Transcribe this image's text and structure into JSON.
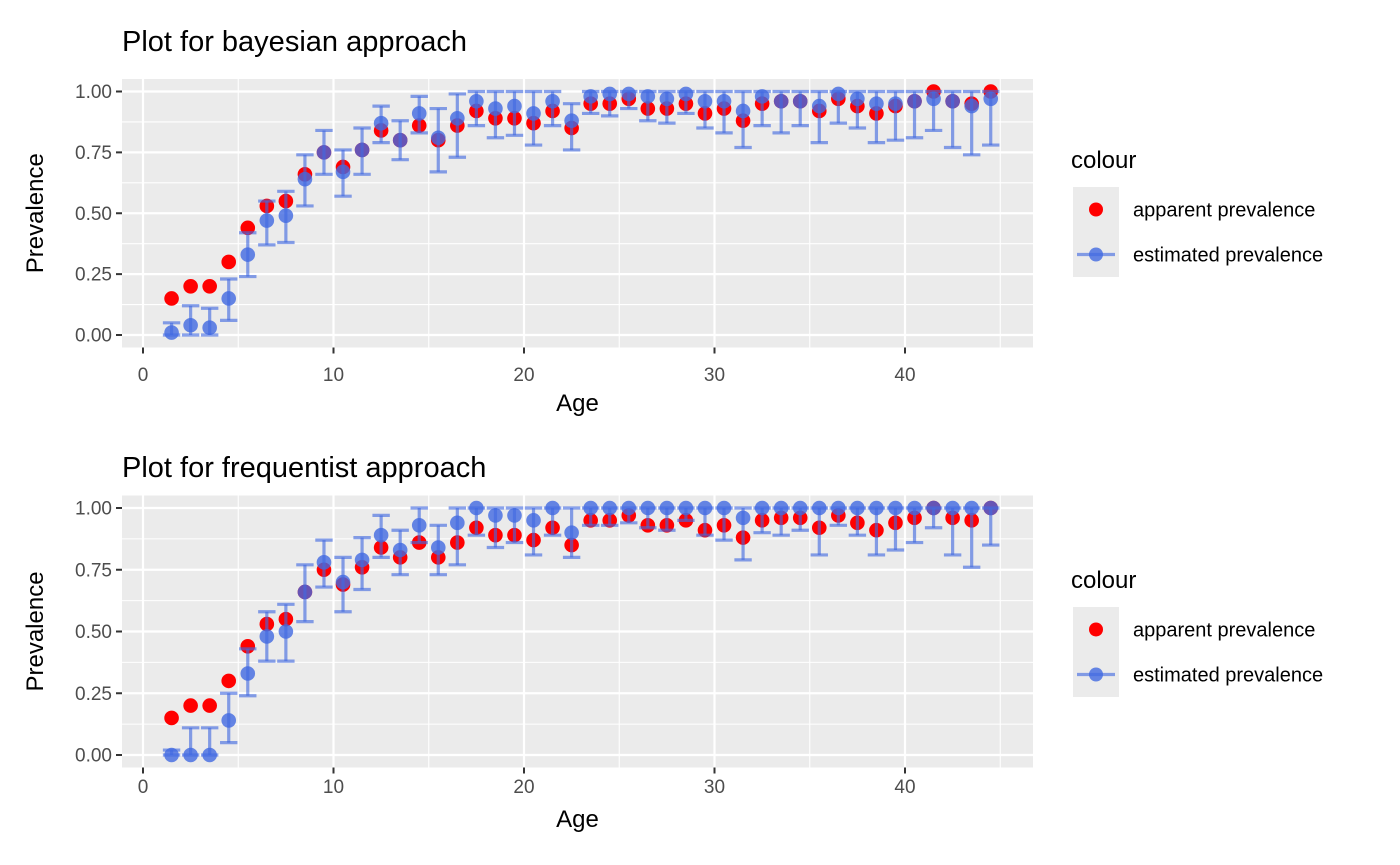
{
  "figure": {
    "background": "#FFFFFF",
    "panel_background": "#EBEBEB",
    "grid_color": "#FFFFFF",
    "title_color": "#000000",
    "tick_label_color": "#4D4D4D",
    "tick_mark_color": "#333333",
    "apparent_color": "#FF0000",
    "estimated_color": "#4169E1"
  },
  "axis": {
    "x_label": "Age",
    "y_label": "Prevalence",
    "x_ticks": [
      0,
      10,
      20,
      30,
      40
    ],
    "x_tick_labels": [
      "0",
      "10",
      "20",
      "30",
      "40"
    ],
    "x_minor_ticks": [
      5,
      15,
      25,
      35,
      45
    ],
    "y_ticks": [
      0,
      0.25,
      0.5,
      0.75,
      1
    ],
    "y_tick_labels": [
      "0.00",
      "0.25",
      "0.50",
      "0.75",
      "1.00"
    ],
    "y_minor_ticks": [
      0.125,
      0.375,
      0.625,
      0.875
    ]
  },
  "legend": {
    "title": "colour",
    "items": [
      {
        "label": "apparent prevalence",
        "color": "#FF0000",
        "type": "point"
      },
      {
        "label": "estimated prevalence",
        "color": "#4169E1",
        "type": "pointrange"
      }
    ]
  },
  "chart_data": [
    {
      "type": "scatter",
      "title": "Plot for bayesian approach",
      "xlabel": "Age",
      "ylabel": "Prevalence",
      "xlim": [
        -0.7,
        46.7
      ],
      "ylim": [
        -0.05,
        1.05
      ],
      "grid": true,
      "legend_position": "right",
      "ages": [
        1.5,
        2.5,
        3.5,
        4.5,
        5.5,
        6.5,
        7.5,
        8.5,
        9.5,
        10.5,
        11.5,
        12.5,
        13.5,
        14.5,
        15.5,
        16.5,
        17.5,
        18.5,
        19.5,
        20.5,
        21.5,
        22.5,
        23.5,
        24.5,
        25.5,
        26.5,
        27.5,
        28.5,
        29.5,
        30.5,
        31.5,
        32.5,
        33.5,
        34.5,
        35.5,
        36.5,
        37.5,
        38.5,
        39.5,
        40.5,
        41.5,
        42.5,
        43.5,
        44.5
      ],
      "series": [
        {
          "name": "apparent prevalence",
          "values": [
            0.15,
            0.2,
            0.2,
            0.3,
            0.44,
            0.53,
            0.55,
            0.66,
            0.75,
            0.69,
            0.76,
            0.84,
            0.8,
            0.86,
            0.8,
            0.86,
            0.92,
            0.89,
            0.89,
            0.87,
            0.92,
            0.85,
            0.95,
            0.95,
            0.97,
            0.93,
            0.93,
            0.95,
            0.91,
            0.93,
            0.88,
            0.95,
            0.96,
            0.96,
            0.92,
            0.97,
            0.94,
            0.91,
            0.94,
            0.96,
            1.0,
            0.96,
            0.95,
            1.0
          ]
        },
        {
          "name": "estimated prevalence",
          "values": [
            0.01,
            0.04,
            0.03,
            0.15,
            0.33,
            0.47,
            0.49,
            0.64,
            0.75,
            0.67,
            0.76,
            0.87,
            0.8,
            0.91,
            0.81,
            0.89,
            0.96,
            0.93,
            0.94,
            0.91,
            0.96,
            0.88,
            0.98,
            0.99,
            0.99,
            0.98,
            0.97,
            0.99,
            0.96,
            0.96,
            0.92,
            0.98,
            0.96,
            0.96,
            0.94,
            0.99,
            0.97,
            0.95,
            0.95,
            0.96,
            0.97,
            0.96,
            0.94,
            0.97
          ],
          "lower": [
            0.0,
            0.0,
            0.0,
            0.06,
            0.24,
            0.37,
            0.38,
            0.53,
            0.66,
            0.57,
            0.66,
            0.79,
            0.72,
            0.83,
            0.67,
            0.73,
            0.86,
            0.81,
            0.82,
            0.78,
            0.86,
            0.76,
            0.91,
            0.9,
            0.93,
            0.88,
            0.87,
            0.91,
            0.85,
            0.83,
            0.77,
            0.86,
            0.83,
            0.86,
            0.79,
            0.87,
            0.85,
            0.79,
            0.8,
            0.81,
            0.84,
            0.77,
            0.74,
            0.78
          ],
          "upper": [
            0.05,
            0.12,
            0.11,
            0.23,
            0.42,
            0.55,
            0.59,
            0.74,
            0.84,
            0.76,
            0.85,
            0.94,
            0.88,
            0.98,
            0.93,
            0.99,
            1.0,
            1.0,
            1.0,
            1.0,
            1.0,
            0.95,
            1.0,
            1.0,
            1.0,
            1.0,
            1.0,
            1.0,
            1.0,
            1.0,
            1.0,
            1.0,
            1.0,
            1.0,
            1.0,
            1.0,
            1.0,
            1.0,
            1.0,
            1.0,
            1.0,
            1.0,
            1.0,
            1.0
          ]
        }
      ]
    },
    {
      "type": "scatter",
      "title": "Plot for frequentist approach",
      "xlabel": "Age",
      "ylabel": "Prevalence",
      "xlim": [
        -0.7,
        46.7
      ],
      "ylim": [
        -0.05,
        1.05
      ],
      "grid": true,
      "legend_position": "right",
      "ages": [
        1.5,
        2.5,
        3.5,
        4.5,
        5.5,
        6.5,
        7.5,
        8.5,
        9.5,
        10.5,
        11.5,
        12.5,
        13.5,
        14.5,
        15.5,
        16.5,
        17.5,
        18.5,
        19.5,
        20.5,
        21.5,
        22.5,
        23.5,
        24.5,
        25.5,
        26.5,
        27.5,
        28.5,
        29.5,
        30.5,
        31.5,
        32.5,
        33.5,
        34.5,
        35.5,
        36.5,
        37.5,
        38.5,
        39.5,
        40.5,
        41.5,
        42.5,
        43.5,
        44.5
      ],
      "series": [
        {
          "name": "apparent prevalence",
          "values": [
            0.15,
            0.2,
            0.2,
            0.3,
            0.44,
            0.53,
            0.55,
            0.66,
            0.75,
            0.69,
            0.76,
            0.84,
            0.8,
            0.86,
            0.8,
            0.86,
            0.92,
            0.89,
            0.89,
            0.87,
            0.92,
            0.85,
            0.95,
            0.95,
            0.97,
            0.93,
            0.93,
            0.95,
            0.91,
            0.93,
            0.88,
            0.95,
            0.96,
            0.96,
            0.92,
            0.97,
            0.94,
            0.91,
            0.94,
            0.96,
            1.0,
            0.96,
            0.95,
            1.0
          ]
        },
        {
          "name": "estimated prevalence",
          "values": [
            0.0,
            0.0,
            0.0,
            0.14,
            0.33,
            0.48,
            0.5,
            0.66,
            0.78,
            0.7,
            0.79,
            0.89,
            0.83,
            0.93,
            0.84,
            0.94,
            1.0,
            0.97,
            0.97,
            0.95,
            1.0,
            0.9,
            1.0,
            1.0,
            1.0,
            1.0,
            1.0,
            1.0,
            1.0,
            1.0,
            0.96,
            1.0,
            1.0,
            1.0,
            1.0,
            1.0,
            1.0,
            1.0,
            1.0,
            1.0,
            1.0,
            1.0,
            1.0,
            1.0
          ],
          "lower": [
            0.0,
            0.0,
            0.0,
            0.05,
            0.24,
            0.38,
            0.38,
            0.54,
            0.68,
            0.58,
            0.67,
            0.8,
            0.73,
            0.86,
            0.73,
            0.77,
            0.89,
            0.84,
            0.86,
            0.81,
            0.89,
            0.8,
            0.93,
            0.93,
            0.94,
            0.92,
            0.91,
            0.95,
            0.89,
            0.87,
            0.79,
            0.9,
            0.89,
            0.91,
            0.81,
            0.93,
            0.89,
            0.81,
            0.83,
            0.86,
            0.92,
            0.81,
            0.76,
            0.85
          ],
          "upper": [
            0.02,
            0.11,
            0.11,
            0.25,
            0.43,
            0.58,
            0.61,
            0.77,
            0.87,
            0.8,
            0.88,
            0.97,
            0.91,
            1.0,
            0.93,
            1.0,
            1.0,
            1.0,
            1.0,
            1.0,
            1.0,
            1.0,
            1.0,
            1.0,
            1.0,
            1.0,
            1.0,
            1.0,
            1.0,
            1.0,
            1.0,
            1.0,
            1.0,
            1.0,
            1.0,
            1.0,
            1.0,
            1.0,
            1.0,
            1.0,
            1.0,
            1.0,
            1.0,
            1.0
          ]
        }
      ]
    }
  ]
}
